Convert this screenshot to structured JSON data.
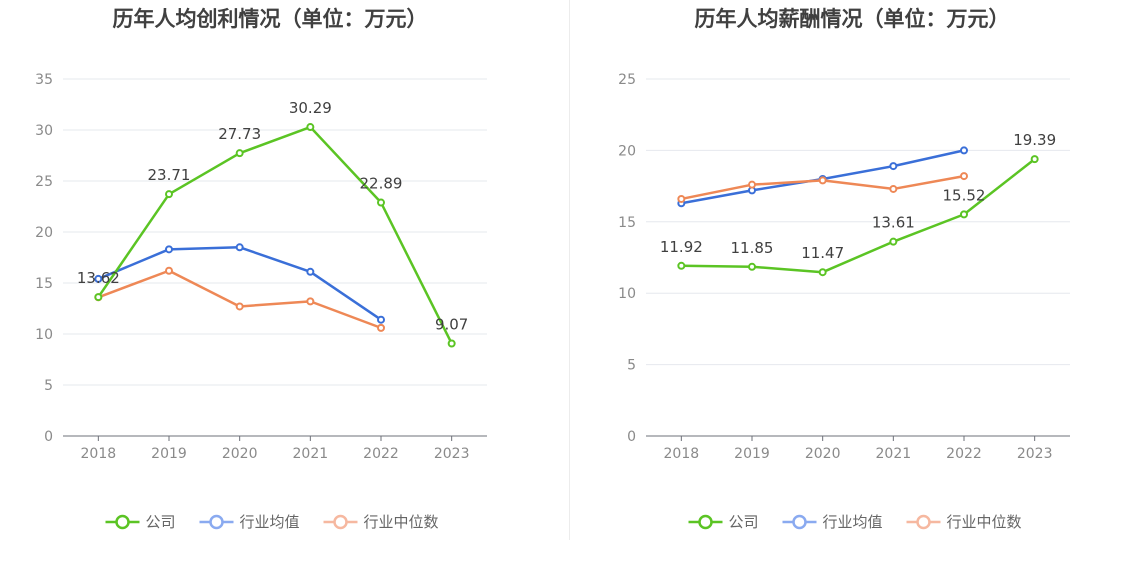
{
  "chart_data": [
    {
      "type": "line",
      "title": "历年人均创利情况（单位：万元）",
      "categories": [
        "2018",
        "2019",
        "2020",
        "2021",
        "2022",
        "2023"
      ],
      "ylim": [
        0,
        35
      ],
      "yticks": [
        0,
        5,
        10,
        15,
        20,
        25,
        30,
        35
      ],
      "grid": true,
      "legend_position": "bottom",
      "series": [
        {
          "name": "公司",
          "color": "#5bc424",
          "values": [
            13.62,
            23.71,
            27.73,
            30.29,
            22.89,
            9.07
          ],
          "labels": [
            "13.62",
            "23.71",
            "27.73",
            "30.29",
            "22.89",
            "9.07"
          ]
        },
        {
          "name": "行业均值",
          "color": "#3a6fd8",
          "values": [
            15.4,
            18.3,
            18.5,
            16.1,
            11.4,
            null
          ],
          "labels": []
        },
        {
          "name": "行业中位数",
          "color": "#ee8856",
          "values": [
            13.6,
            16.2,
            12.7,
            13.2,
            10.6,
            null
          ],
          "labels": []
        }
      ]
    },
    {
      "type": "line",
      "title": "历年人均薪酬情况（单位：万元）",
      "categories": [
        "2018",
        "2019",
        "2020",
        "2021",
        "2022",
        "2023"
      ],
      "ylim": [
        0,
        25
      ],
      "yticks": [
        0,
        5,
        10,
        15,
        20,
        25
      ],
      "grid": true,
      "legend_position": "bottom",
      "series": [
        {
          "name": "公司",
          "color": "#5bc424",
          "values": [
            11.92,
            11.85,
            11.47,
            13.61,
            15.52,
            19.39
          ],
          "labels": [
            "11.92",
            "11.85",
            "11.47",
            "13.61",
            "15.52",
            "19.39"
          ]
        },
        {
          "name": "行业均值",
          "color": "#3a6fd8",
          "values": [
            16.3,
            17.2,
            18.0,
            18.9,
            20.0,
            null
          ],
          "labels": []
        },
        {
          "name": "行业中位数",
          "color": "#ee8856",
          "values": [
            16.6,
            17.6,
            17.9,
            17.3,
            18.2,
            null
          ],
          "labels": []
        }
      ]
    }
  ],
  "legend": [
    {
      "name": "公司",
      "color": "#5bc424"
    },
    {
      "name": "行业均值",
      "color": "#8aaaf0"
    },
    {
      "name": "行业中位数",
      "color": "#f6b8a0"
    }
  ]
}
